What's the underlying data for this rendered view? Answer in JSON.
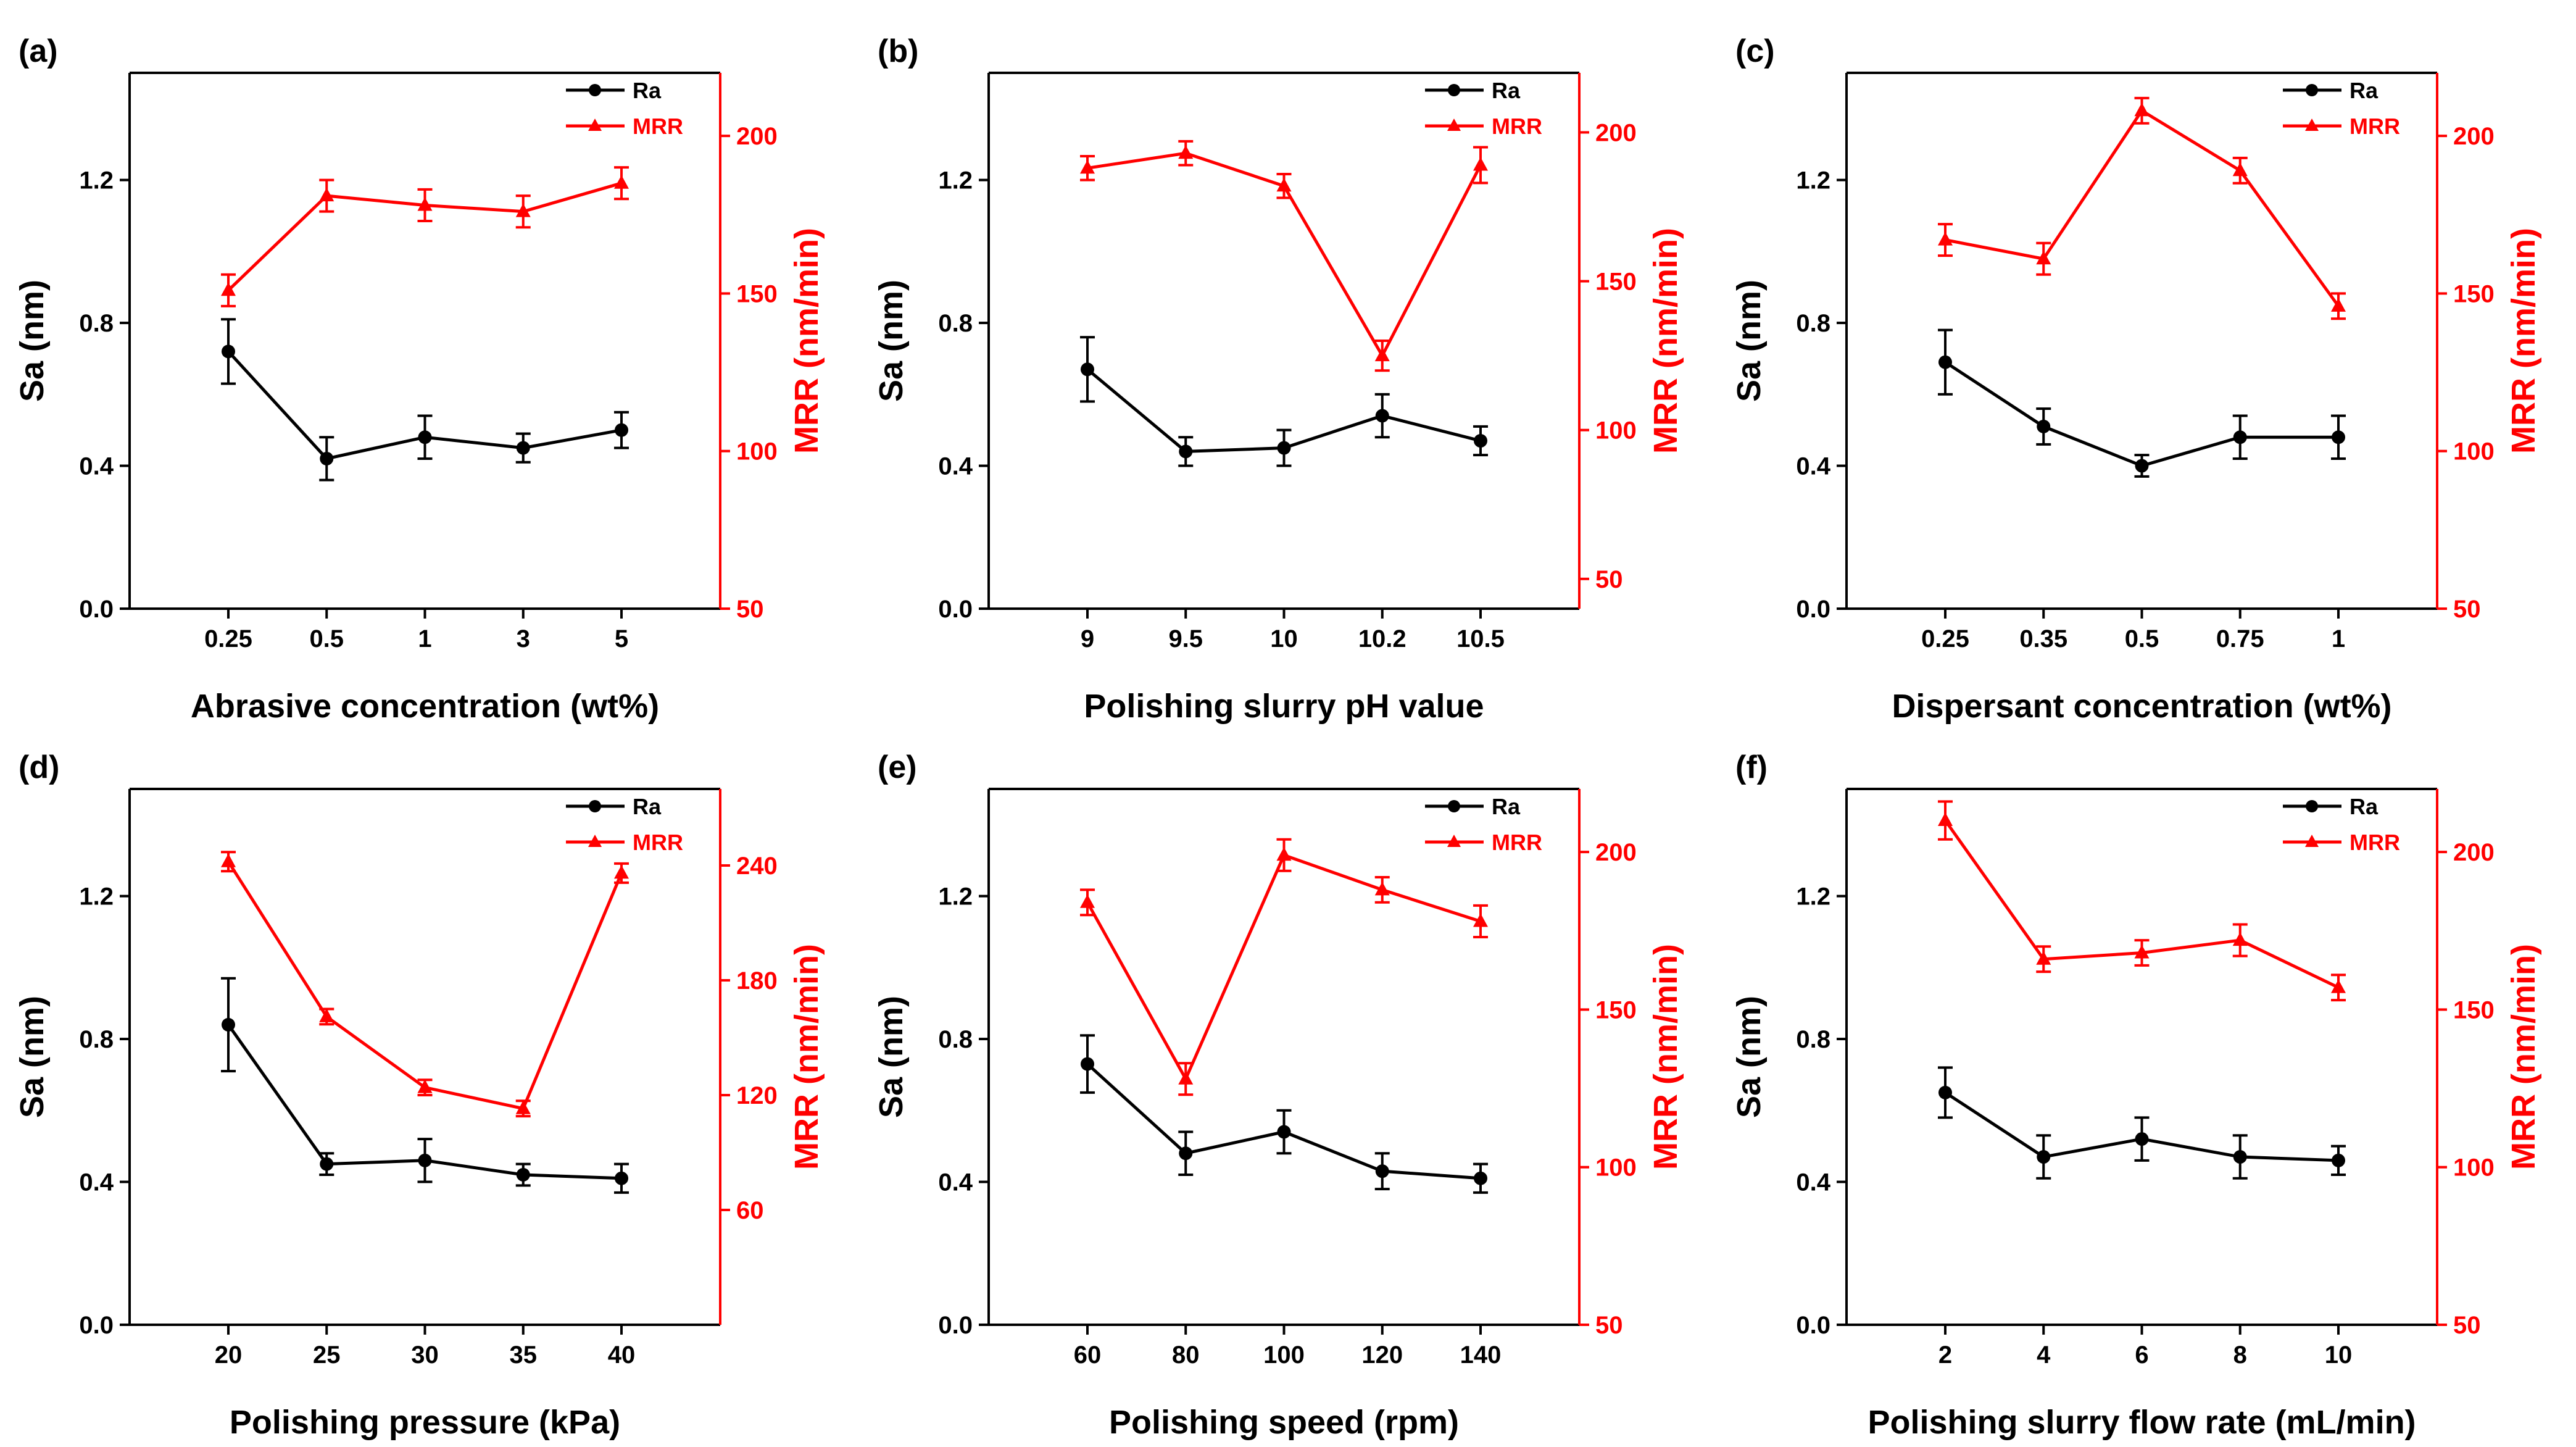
{
  "colors": {
    "ra": "#000000",
    "mrr": "#ff0000"
  },
  "chart_data": [
    {
      "type": "line",
      "panel_label": "(a)",
      "xlabel": "Abrasive concentration (wt%)",
      "ylabel": "Sa (nm)",
      "y2label": "MRR (nm/min)",
      "categories": [
        "0.25",
        "0.5",
        "1",
        "3",
        "5"
      ],
      "ylim": [
        0,
        1.5
      ],
      "yticks": [
        "0.0",
        "0.4",
        "0.8",
        "1.2"
      ],
      "y2lim": [
        50,
        220
      ],
      "y2ticks": [
        "50",
        "100",
        "150",
        "200"
      ],
      "series": [
        {
          "name": "Ra",
          "axis": "left",
          "marker": "circle",
          "values": [
            0.72,
            0.42,
            0.48,
            0.45,
            0.5
          ],
          "errors": [
            0.09,
            0.06,
            0.06,
            0.04,
            0.05
          ]
        },
        {
          "name": "MRR",
          "axis": "right",
          "marker": "triangle",
          "values": [
            151,
            181,
            178,
            176,
            185
          ],
          "errors": [
            5,
            5,
            5,
            5,
            5
          ]
        }
      ],
      "legend": "top-right"
    },
    {
      "type": "line",
      "panel_label": "(b)",
      "xlabel": "Polishing slurry pH value",
      "ylabel": "Sa (nm)",
      "y2label": "MRR (nm/min)",
      "categories": [
        "9",
        "9.5",
        "10",
        "10.2",
        "10.5"
      ],
      "ylim": [
        0,
        1.5
      ],
      "yticks": [
        "0.0",
        "0.4",
        "0.8",
        "1.2"
      ],
      "y2lim": [
        40,
        220
      ],
      "y2ticks": [
        "50",
        "100",
        "150",
        "200"
      ],
      "series": [
        {
          "name": "Ra",
          "axis": "left",
          "marker": "circle",
          "values": [
            0.67,
            0.44,
            0.45,
            0.54,
            0.47
          ],
          "errors": [
            0.09,
            0.04,
            0.05,
            0.06,
            0.04
          ]
        },
        {
          "name": "MRR",
          "axis": "right",
          "marker": "triangle",
          "values": [
            188,
            193,
            182,
            125,
            189
          ],
          "errors": [
            4,
            4,
            4,
            5,
            6
          ]
        }
      ],
      "legend": "top-right"
    },
    {
      "type": "line",
      "panel_label": "(c)",
      "xlabel": "Dispersant concentration (wt%)",
      "ylabel": "Sa (nm)",
      "y2label": "MRR (nm/min)",
      "categories": [
        "0.25",
        "0.35",
        "0.5",
        "0.75",
        "1"
      ],
      "ylim": [
        0,
        1.5
      ],
      "yticks": [
        "0.0",
        "0.4",
        "0.8",
        "1.2"
      ],
      "y2lim": [
        50,
        220
      ],
      "y2ticks": [
        "50",
        "100",
        "150",
        "200"
      ],
      "series": [
        {
          "name": "Ra",
          "axis": "left",
          "marker": "circle",
          "values": [
            0.69,
            0.51,
            0.4,
            0.48,
            0.48
          ],
          "errors": [
            0.09,
            0.05,
            0.03,
            0.06,
            0.06
          ]
        },
        {
          "name": "MRR",
          "axis": "right",
          "marker": "triangle",
          "values": [
            167,
            161,
            208,
            189,
            146
          ],
          "errors": [
            5,
            5,
            4,
            4,
            4
          ]
        }
      ],
      "legend": "top-right"
    },
    {
      "type": "line",
      "panel_label": "(d)",
      "xlabel": "Polishing pressure (kPa)",
      "ylabel": "Sa (nm)",
      "y2label": "MRR (nm/min)",
      "categories": [
        "20",
        "25",
        "30",
        "35",
        "40"
      ],
      "ylim": [
        0,
        1.5
      ],
      "yticks": [
        "0.0",
        "0.4",
        "0.8",
        "1.2"
      ],
      "y2lim": [
        0,
        280
      ],
      "y2ticks": [
        "60",
        "120",
        "180",
        "240"
      ],
      "series": [
        {
          "name": "Ra",
          "axis": "left",
          "marker": "circle",
          "values": [
            0.84,
            0.45,
            0.46,
            0.42,
            0.41
          ],
          "errors": [
            0.13,
            0.03,
            0.06,
            0.03,
            0.04
          ]
        },
        {
          "name": "MRR",
          "axis": "right",
          "marker": "triangle",
          "values": [
            242,
            161,
            124,
            113,
            236
          ],
          "errors": [
            5,
            4,
            4,
            4,
            5
          ]
        }
      ],
      "legend": "top-right"
    },
    {
      "type": "line",
      "panel_label": "(e)",
      "xlabel": "Polishing speed (rpm)",
      "ylabel": "Sa (nm)",
      "y2label": "MRR (nm/min)",
      "categories": [
        "60",
        "80",
        "100",
        "120",
        "140"
      ],
      "ylim": [
        0,
        1.5
      ],
      "yticks": [
        "0.0",
        "0.4",
        "0.8",
        "1.2"
      ],
      "y2lim": [
        50,
        220
      ],
      "y2ticks": [
        "50",
        "100",
        "150",
        "200"
      ],
      "series": [
        {
          "name": "Ra",
          "axis": "left",
          "marker": "circle",
          "values": [
            0.73,
            0.48,
            0.54,
            0.43,
            0.41
          ],
          "errors": [
            0.08,
            0.06,
            0.06,
            0.05,
            0.04
          ]
        },
        {
          "name": "MRR",
          "axis": "right",
          "marker": "triangle",
          "values": [
            184,
            128,
            199,
            188,
            178
          ],
          "errors": [
            4,
            5,
            5,
            4,
            5
          ]
        }
      ],
      "legend": "top-right"
    },
    {
      "type": "line",
      "panel_label": "(f)",
      "xlabel": "Polishing slurry flow rate (mL/min)",
      "ylabel": "Sa (nm)",
      "y2label": "MRR (nm/min)",
      "categories": [
        "2",
        "4",
        "6",
        "8",
        "10"
      ],
      "ylim": [
        0,
        1.5
      ],
      "yticks": [
        "0.0",
        "0.4",
        "0.8",
        "1.2"
      ],
      "y2lim": [
        50,
        220
      ],
      "y2ticks": [
        "50",
        "100",
        "150",
        "200"
      ],
      "series": [
        {
          "name": "Ra",
          "axis": "left",
          "marker": "circle",
          "values": [
            0.65,
            0.47,
            0.52,
            0.47,
            0.46
          ],
          "errors": [
            0.07,
            0.06,
            0.06,
            0.06,
            0.04
          ]
        },
        {
          "name": "MRR",
          "axis": "right",
          "marker": "triangle",
          "values": [
            210,
            166,
            168,
            172,
            157
          ],
          "errors": [
            6,
            4,
            4,
            5,
            4
          ]
        }
      ],
      "legend": "top-right"
    }
  ]
}
